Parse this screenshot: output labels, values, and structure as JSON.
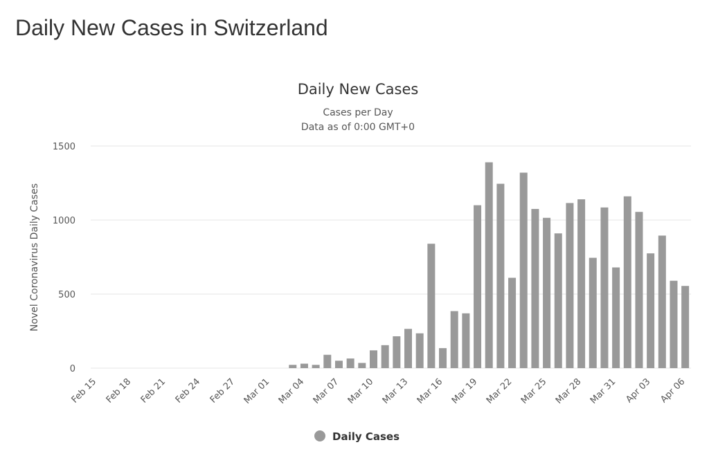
{
  "page_title": "Daily New Cases in Switzerland",
  "chart_data": {
    "type": "bar",
    "title": "Daily New Cases",
    "subtitle": [
      "Cases per Day",
      "Data as of 0:00 GMT+0"
    ],
    "y_label": "Novel Coronavirus Daily Cases",
    "categories": [
      "Feb 15",
      null,
      null,
      "Feb 18",
      null,
      null,
      "Feb 21",
      null,
      null,
      "Feb 24",
      null,
      null,
      "Feb 27",
      null,
      null,
      "Mar 01",
      null,
      null,
      "Mar 04",
      null,
      null,
      "Mar 07",
      null,
      null,
      "Mar 10",
      null,
      null,
      "Mar 13",
      null,
      null,
      "Mar 16",
      null,
      null,
      "Mar 19",
      null,
      null,
      "Mar 22",
      null,
      null,
      "Mar 25",
      null,
      null,
      "Mar 28",
      null,
      null,
      "Mar 31",
      null,
      null,
      "Apr 03",
      null,
      null,
      "Apr 06"
    ],
    "series": [
      {
        "name": "Daily Cases",
        "color": "#999999",
        "values": [
          0,
          0,
          0,
          0,
          0,
          0,
          0,
          0,
          0,
          0,
          0,
          0,
          0,
          0,
          0,
          0,
          0,
          22,
          30,
          22,
          90,
          50,
          65,
          35,
          120,
          155,
          215,
          265,
          235,
          840,
          135,
          385,
          370,
          1100,
          1390,
          1245,
          610,
          1320,
          1075,
          1015,
          910,
          1115,
          1140,
          745,
          1085,
          680,
          1160,
          1055,
          775,
          895,
          590,
          555
        ]
      }
    ],
    "ylim": [
      0,
      1500
    ],
    "yticks": [
      0,
      500,
      1000,
      1500
    ],
    "grid": true,
    "legend": "bottom"
  }
}
